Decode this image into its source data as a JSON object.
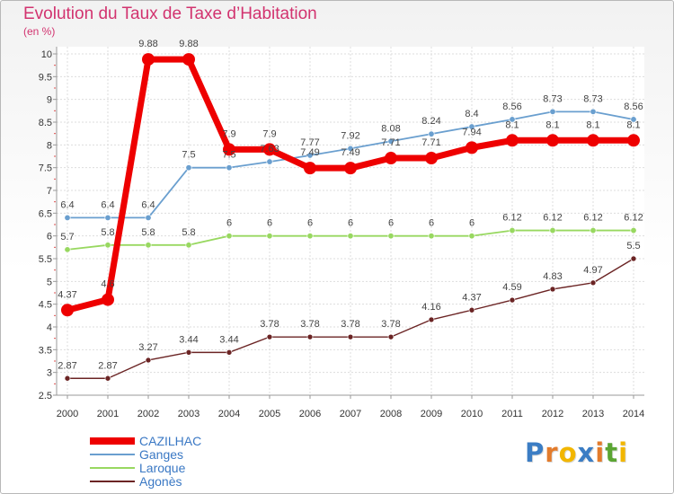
{
  "chart_data": {
    "type": "line",
    "title": "Evolution du Taux de Taxe d’Habitation",
    "subtitle": "(en %)",
    "xlabel": "",
    "ylabel": "",
    "ylim": [
      2.5,
      10
    ],
    "y_ticks": [
      "2.5",
      "3",
      "3.5",
      "4",
      "4.5",
      "5",
      "5.5",
      "6",
      "6.5",
      "7",
      "7.5",
      "8",
      "8.5",
      "9",
      "9.5",
      "10"
    ],
    "categories": [
      "2000",
      "2001",
      "2002",
      "2003",
      "2004",
      "2005",
      "2006",
      "2007",
      "2008",
      "2009",
      "2010",
      "2011",
      "2012",
      "2013",
      "2014"
    ],
    "legend_position": "bottom-left",
    "series": [
      {
        "name": "CAZILHAC",
        "color": "#ee0000",
        "values": [
          4.37,
          4.6,
          9.88,
          9.88,
          7.9,
          7.9,
          7.49,
          7.49,
          7.71,
          7.71,
          7.94,
          8.1,
          8.1,
          8.1,
          8.1
        ],
        "labels": [
          "4.37",
          "4.6",
          "9.88",
          "9.88",
          "7.9",
          "7.9",
          "7.49",
          "7.49",
          "7.71",
          "7.71",
          "7.94",
          "8.1",
          "8.1",
          "8.1",
          "8.1"
        ]
      },
      {
        "name": "Ganges",
        "color": "#6a9fcf",
        "values": [
          6.4,
          6.4,
          6.4,
          7.5,
          7.5,
          7.63,
          7.77,
          7.92,
          8.08,
          8.24,
          8.4,
          8.56,
          8.73,
          8.73,
          8.56
        ],
        "labels": [
          "6.4",
          "6.4",
          "6.4",
          "7.5",
          "7.5",
          "7.63",
          "7.77",
          "7.92",
          "8.08",
          "8.24",
          "8.4",
          "8.56",
          "8.73",
          "8.73",
          "8.56"
        ]
      },
      {
        "name": "Laroque",
        "color": "#98d860",
        "values": [
          5.7,
          5.8,
          5.8,
          5.8,
          6,
          6,
          6,
          6,
          6,
          6,
          6,
          6.12,
          6.12,
          6.12,
          6.12
        ],
        "labels": [
          "5.7",
          "5.8",
          "5.8",
          "5.8",
          "6",
          "6",
          "6",
          "6",
          "6",
          "6",
          "6",
          "6.12",
          "6.12",
          "6.12",
          "6.12"
        ]
      },
      {
        "name": "Agonès",
        "color": "#6b2424",
        "values": [
          2.87,
          2.87,
          3.27,
          3.44,
          3.44,
          3.78,
          3.78,
          3.78,
          3.78,
          4.16,
          4.37,
          4.59,
          4.83,
          4.97,
          5.5
        ],
        "labels": [
          "2.87",
          "2.87",
          "3.27",
          "3.44",
          "3.44",
          "3.78",
          "3.78",
          "3.78",
          "3.78",
          "4.16",
          "4.37",
          "4.59",
          "4.83",
          "4.97",
          "5.5"
        ]
      }
    ]
  },
  "brand": {
    "letters": [
      "P",
      "r",
      "o",
      "x",
      "i",
      "t",
      "i"
    ],
    "colors": [
      "#3b7dc4",
      "#e37b2b",
      "#f2b600",
      "#3b7dc4",
      "#e37b2b",
      "#5aa532",
      "#f2b600"
    ]
  }
}
